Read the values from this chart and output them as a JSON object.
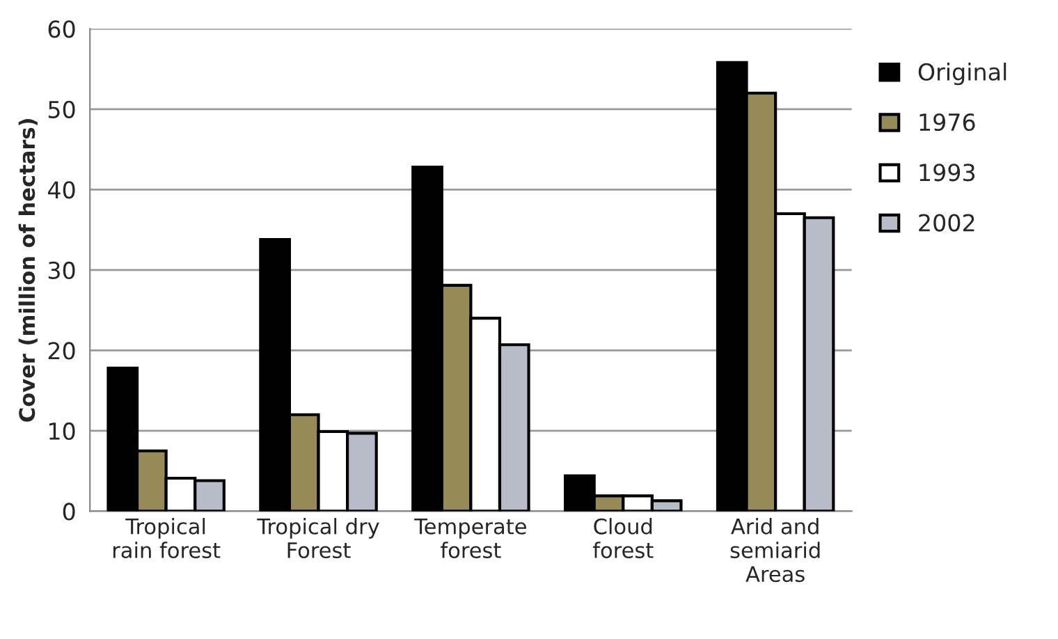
{
  "chart_data": {
    "type": "bar",
    "ylabel": "Cover (million of hectars)",
    "categories": [
      "Tropical\nrain forest",
      "Tropical dry\nForest",
      "Temperate\nforest",
      "Cloud\nforest",
      "Arid and\nsemiarid\nAreas"
    ],
    "series": [
      {
        "name": "Original",
        "color": "#000000",
        "values": [
          17.8,
          33.8,
          42.8,
          4.4,
          55.8
        ]
      },
      {
        "name": "1976",
        "color": "#958a58",
        "values": [
          7.5,
          12,
          28.1,
          1.9,
          52
        ]
      },
      {
        "name": "1993",
        "color": "#ffffff",
        "values": [
          4.1,
          9.9,
          24,
          1.9,
          37
        ]
      },
      {
        "name": "2002",
        "color": "#b8bcc8",
        "values": [
          3.8,
          9.7,
          20.7,
          1.3,
          36.5
        ]
      }
    ],
    "ylim": [
      0,
      60
    ],
    "yticks": [
      0,
      10,
      20,
      30,
      40,
      50,
      60
    ],
    "grid": "y",
    "legend": "right"
  }
}
